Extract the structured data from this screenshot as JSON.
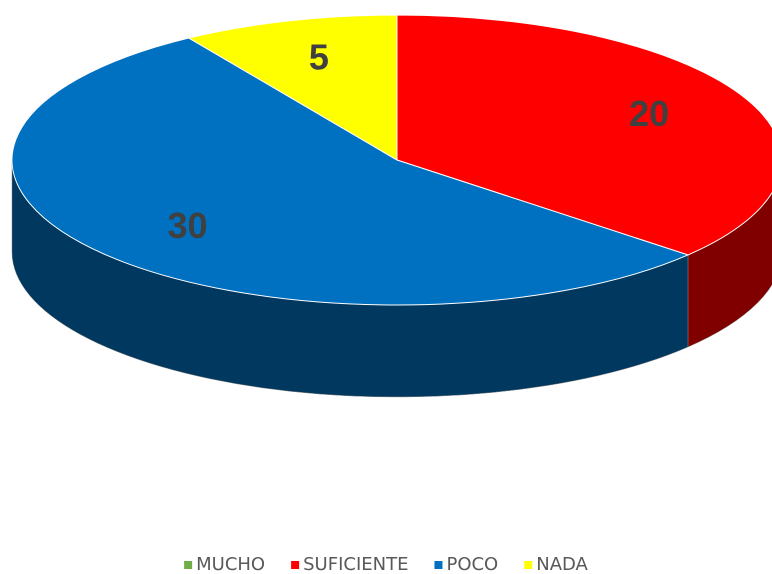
{
  "chart_data": {
    "type": "pie",
    "categories": [
      "MUCHO",
      "SUFICIENTE",
      "POCO",
      "NADA"
    ],
    "values": [
      0,
      20,
      30,
      5
    ],
    "colors": [
      "#70ad47",
      "#ff0000",
      "#0070c0",
      "#ffff00"
    ],
    "legend": "bottom"
  }
}
